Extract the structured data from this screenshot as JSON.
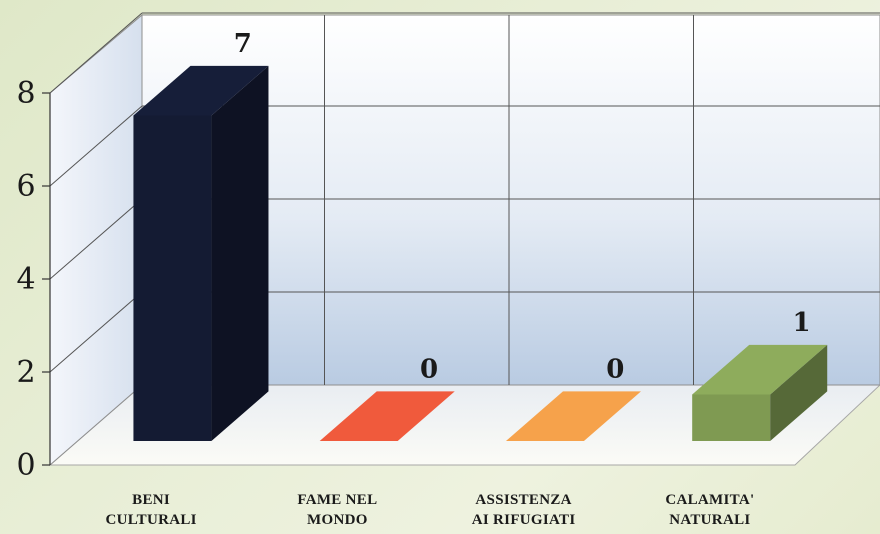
{
  "chart_data": {
    "type": "bar",
    "categories": [
      [
        "BENI",
        "CULTURALI"
      ],
      [
        "FAME NEL",
        "MONDO"
      ],
      [
        "ASSISTENZA",
        "AI RIFUGIATI"
      ],
      [
        "CALAMITA'",
        "NATURALI"
      ]
    ],
    "values": [
      7,
      0,
      0,
      1
    ],
    "value_labels": [
      "7",
      "0",
      "0",
      "1"
    ],
    "colors": [
      "#141b33",
      "#f05a3c",
      "#f6a24b",
      "#7f9a52"
    ],
    "yticks": [
      "0",
      "2",
      "4",
      "6",
      "8"
    ],
    "ylim": [
      0,
      8
    ],
    "grid": true,
    "style": "3d"
  }
}
